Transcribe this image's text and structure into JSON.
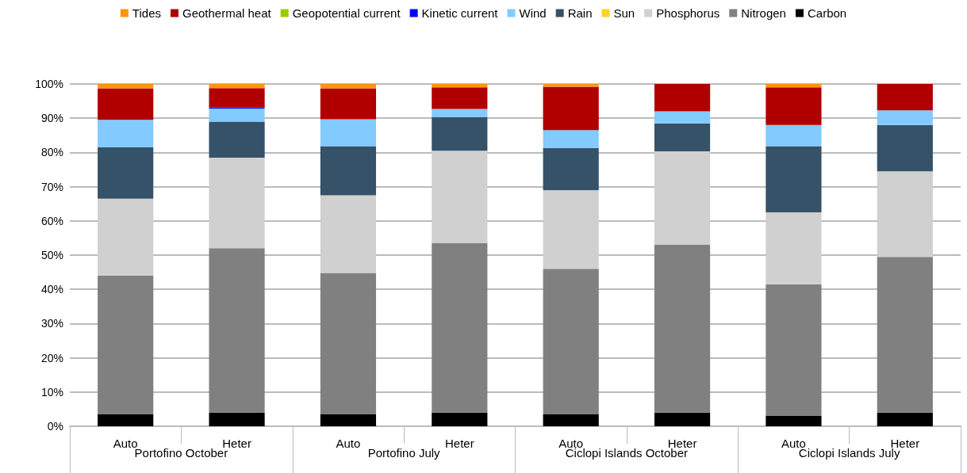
{
  "chart_data": {
    "type": "bar",
    "stacked": true,
    "categories": [
      "Auto",
      "Heter",
      "Auto",
      "Heter",
      "Auto",
      "Heter",
      "Auto",
      "Heter"
    ],
    "annotations": [
      "Portofino October",
      "Portofino July",
      "Ciclopi Islands October",
      "Ciclopi Islands July"
    ],
    "series": [
      {
        "name": "Carbon",
        "color": "#000000",
        "values": [
          3.5,
          4,
          3.5,
          4,
          3.5,
          4,
          3,
          4
        ]
      },
      {
        "name": "Nitrogen",
        "color": "#808080",
        "values": [
          40.5,
          48,
          41.3,
          49.5,
          42.5,
          49,
          38.5,
          45.5
        ]
      },
      {
        "name": "Phosphorus",
        "color": "#d0d0d0",
        "values": [
          22.5,
          26.5,
          22.7,
          27,
          23,
          27.3,
          21,
          25
        ]
      },
      {
        "name": "Sun",
        "color": "#ffd320",
        "values": [
          0,
          0,
          0,
          0,
          0,
          0,
          0,
          0
        ]
      },
      {
        "name": "Rain",
        "color": "#355269",
        "values": [
          15,
          10.5,
          14.3,
          9.8,
          12.3,
          8.2,
          19.3,
          13.5
        ]
      },
      {
        "name": "Wind",
        "color": "#83caff",
        "values": [
          8,
          3.8,
          7.9,
          2.4,
          5.2,
          3.5,
          6.2,
          4.3
        ]
      },
      {
        "name": "Kinetic current",
        "color": "#0000ff",
        "values": [
          0,
          0.4,
          0,
          0,
          0,
          0,
          0,
          0
        ]
      },
      {
        "name": "Geopotential current",
        "color": "#99cc00",
        "values": [
          0,
          0,
          0,
          0,
          0,
          0,
          0,
          0
        ]
      },
      {
        "name": "Geothermal heat",
        "color": "#b00000",
        "values": [
          9.2,
          5.6,
          9,
          6.3,
          12.7,
          8,
          11,
          7.7
        ]
      },
      {
        "name": "Tides",
        "color": "#ff950e",
        "values": [
          1.3,
          1.2,
          1.3,
          1,
          0.8,
          0,
          1,
          0
        ]
      }
    ],
    "ylim": [
      0,
      100
    ],
    "yticks": [
      {
        "value": 0,
        "label": "0%"
      },
      {
        "value": 10,
        "label": "10%"
      },
      {
        "value": 20,
        "label": "20%"
      },
      {
        "value": 30,
        "label": "30%"
      },
      {
        "value": 40,
        "label": "40%"
      },
      {
        "value": 50,
        "label": "50%"
      },
      {
        "value": 60,
        "label": "60%"
      },
      {
        "value": 70,
        "label": "70%"
      },
      {
        "value": 80,
        "label": "80%"
      },
      {
        "value": 90,
        "label": "90%"
      },
      {
        "value": 100,
        "label": "100%"
      }
    ],
    "grid": "y",
    "legend": "top"
  }
}
